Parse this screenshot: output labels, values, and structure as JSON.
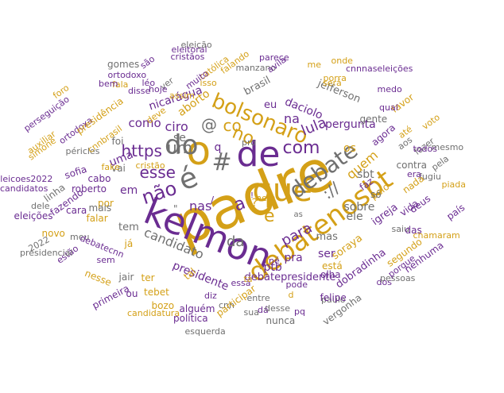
{
  "palette": {
    "purple": "#6a2c91",
    "gold": "#d4a017",
    "gray": "#707070",
    "tan": "#c8963e"
  },
  "words": [
    {
      "t": "padre",
      "c": "gold"
    },
    {
      "t": "kelmon",
      "c": "purple"
    },
    {
      "t": "o",
      "c": "gold"
    },
    {
      "t": "de",
      "c": "purple"
    },
    {
      "t": "é",
      "c": "gray"
    },
    {
      "t": "do",
      "c": "gray"
    },
    {
      "t": "que",
      "c": "gold"
    },
    {
      "t": "debatenosbt",
      "c": "gold"
    },
    {
      "t": "debate",
      "c": "gray"
    },
    {
      "t": "bolsonaro",
      "c": "gold"
    },
    {
      "t": "#",
      "c": "gray"
    },
    {
      "t": "não",
      "c": "purple"
    },
    {
      "t": "a",
      "c": "purple"
    },
    {
      "t": "com",
      "c": "purple"
    },
    {
      "t": "no",
      "c": "gold"
    },
    {
      "t": "esse",
      "c": "purple"
    },
    {
      "t": "https",
      "c": "purple"
    },
    {
      "t": "um",
      "c": "gray"
    },
    {
      "t": "e",
      "c": "gold"
    },
    {
      "t": "@",
      "c": "gray"
    },
    {
      "t": "co",
      "c": "gold"
    },
    {
      "t": "://",
      "c": "gray"
    },
    {
      "t": "da",
      "c": "gray"
    },
    {
      "t": "para",
      "c": "purple"
    },
    {
      "t": "lula",
      "c": "purple"
    },
    {
      "t": "candidato",
      "c": "gray"
    },
    {
      "t": "quem",
      "c": "gold"
    },
    {
      "t": "na",
      "c": "purple"
    },
    {
      "t": "ciro",
      "c": "purple"
    },
    {
      "t": "como",
      "c": "purple"
    },
    {
      "t": "em",
      "c": "purple"
    },
    {
      "t": "se",
      "c": "gray"
    },
    {
      "t": "uma",
      "c": "purple"
    },
    {
      "t": "aborto",
      "c": "gold"
    },
    {
      "t": "daciolo",
      "c": "purple"
    },
    {
      "t": "pergunta",
      "c": "purple"
    },
    {
      "t": "sobre",
      "c": "gray"
    },
    {
      "t": "ptb",
      "c": "purple"
    },
    {
      "t": "pra",
      "c": "purple"
    },
    {
      "t": "ser",
      "c": "purple"
    },
    {
      "t": "presidente",
      "c": "purple"
    },
    {
      "t": "debatepresidente",
      "c": "purple"
    },
    {
      "t": "os",
      "c": "gold"
    },
    {
      "t": "sbt",
      "c": "gray"
    },
    {
      "t": "ele",
      "c": "gray"
    },
    {
      "t": "mas",
      "c": "gray"
    },
    {
      "t": "igreja",
      "c": "purple"
    },
    {
      "t": "tem",
      "c": "gray"
    },
    {
      "t": "nicarágua",
      "c": "purple"
    },
    {
      "t": "brasil",
      "c": "gray"
    },
    {
      "t": "eu",
      "c": "purple"
    },
    {
      "t": "está",
      "c": "gold"
    },
    {
      "t": "soraya",
      "c": "gold"
    },
    {
      "t": "dobradinha",
      "c": "purple"
    },
    {
      "t": "jefferson",
      "c": "gray"
    },
    {
      "t": "gente",
      "c": "gray"
    },
    {
      "t": "agora",
      "c": "purple"
    },
    {
      "t": "vida",
      "c": "purple"
    },
    {
      "t": "deus",
      "c": "purple"
    },
    {
      "t": "pelo",
      "c": "gold"
    },
    {
      "t": "nada",
      "c": "gold"
    },
    {
      "t": "falar",
      "c": "gold"
    },
    {
      "t": "por",
      "c": "gold"
    },
    {
      "t": "vai",
      "c": "gray"
    },
    {
      "t": "foi",
      "c": "gray"
    },
    {
      "t": "cabo",
      "c": "purple"
    },
    {
      "t": "roberto",
      "c": "purple"
    },
    {
      "t": "sofia",
      "c": "purple"
    },
    {
      "t": "fazendo",
      "c": "purple"
    },
    {
      "t": "cara",
      "c": "purple"
    },
    {
      "t": "mais",
      "c": "gray"
    },
    {
      "t": "linha",
      "c": "gray"
    },
    {
      "t": "eleições",
      "c": "purple"
    },
    {
      "t": "dele",
      "c": "gray"
    },
    {
      "t": "novo",
      "c": "gold"
    },
    {
      "t": "meu",
      "c": "gray"
    },
    {
      "t": "2022",
      "c": "gray"
    },
    {
      "t": "estão",
      "c": "purple"
    },
    {
      "t": "presidencial",
      "c": "gray"
    },
    {
      "t": "sem",
      "c": "purple"
    },
    {
      "t": "debatecnn",
      "c": "purple"
    },
    {
      "t": "já",
      "c": "gold"
    },
    {
      "t": "jair",
      "c": "gray"
    },
    {
      "t": "ou",
      "c": "purple"
    },
    {
      "t": "primeira",
      "c": "purple"
    },
    {
      "t": "ter",
      "c": "gold"
    },
    {
      "t": "tebet",
      "c": "gold"
    },
    {
      "t": "bozo",
      "c": "gold"
    },
    {
      "t": "nesse",
      "c": "gold"
    },
    {
      "t": "candidatura",
      "c": "gold"
    },
    {
      "t": "alguém",
      "c": "purple"
    },
    {
      "t": "política",
      "c": "purple"
    },
    {
      "t": "esquerda",
      "c": "gray"
    },
    {
      "t": "tal",
      "c": "gold"
    },
    {
      "t": "cnn",
      "c": "gray"
    },
    {
      "t": "diz",
      "c": "purple"
    },
    {
      "t": "essa",
      "c": "purple"
    },
    {
      "t": "participar",
      "c": "gold"
    },
    {
      "t": "sua",
      "c": "gray"
    },
    {
      "t": "dá",
      "c": "purple"
    },
    {
      "t": "entre",
      "c": "gray"
    },
    {
      "t": "desse",
      "c": "gray"
    },
    {
      "t": "pode",
      "c": "purple"
    },
    {
      "t": "nunca",
      "c": "gray"
    },
    {
      "t": "pq",
      "c": "purple"
    },
    {
      "t": "paulo",
      "c": "gray"
    },
    {
      "t": "felipe",
      "c": "purple"
    },
    {
      "t": "vergonha",
      "c": "gray"
    },
    {
      "t": "olha",
      "c": "purple"
    },
    {
      "t": "dos",
      "c": "purple"
    },
    {
      "t": "pessoas",
      "c": "gray"
    },
    {
      "t": "porque",
      "c": "purple"
    },
    {
      "t": "nenhuma",
      "c": "purple"
    },
    {
      "t": "segundo",
      "c": "gold"
    },
    {
      "t": "chamaram",
      "c": "gold"
    },
    {
      "t": "saiu",
      "c": "gray"
    },
    {
      "t": "das",
      "c": "purple"
    },
    {
      "t": "país",
      "c": "purple"
    },
    {
      "t": "piada",
      "c": "gold"
    },
    {
      "t": "fugiu",
      "c": "gray"
    },
    {
      "t": "pela",
      "c": "gray"
    },
    {
      "t": "era",
      "c": "purple"
    },
    {
      "t": "contra",
      "c": "gray"
    },
    {
      "t": "fazer",
      "c": "gray"
    },
    {
      "t": "todos",
      "c": "purple"
    },
    {
      "t": "mesmo",
      "c": "gray"
    },
    {
      "t": "aos",
      "c": "gray"
    },
    {
      "t": "até",
      "c": "gold"
    },
    {
      "t": "voto",
      "c": "gold"
    },
    {
      "t": "favor",
      "c": "gold"
    },
    {
      "t": "qual",
      "c": "purple"
    },
    {
      "t": "medo",
      "c": "purple"
    },
    {
      "t": "cnnnaseleições",
      "c": "purple"
    },
    {
      "t": "será",
      "c": "gold"
    },
    {
      "t": "porra",
      "c": "gold"
    },
    {
      "t": "onde",
      "c": "gold"
    },
    {
      "t": "me",
      "c": "gold"
    },
    {
      "t": "parece",
      "c": "purple"
    },
    {
      "t": "manzano",
      "c": "gray"
    },
    {
      "t": "avila",
      "c": "purple"
    },
    {
      "t": "falando",
      "c": "gold"
    },
    {
      "t": "católica",
      "c": "gold"
    },
    {
      "t": "eleitoral",
      "c": "purple"
    },
    {
      "t": "eleição",
      "c": "gray"
    },
    {
      "t": "cristãos",
      "c": "purple"
    },
    {
      "t": "ver",
      "c": "gray"
    },
    {
      "t": "léo",
      "c": "purple"
    },
    {
      "t": "assim",
      "c": "gold"
    },
    {
      "t": "muito",
      "c": "purple"
    },
    {
      "t": "isso",
      "c": "gold"
    },
    {
      "t": "hoje",
      "c": "purple"
    },
    {
      "t": "são",
      "c": "purple"
    },
    {
      "t": "gomes",
      "c": "gray"
    },
    {
      "t": "ortodoxo",
      "c": "purple"
    },
    {
      "t": "disse",
      "c": "purple"
    },
    {
      "t": "fala",
      "c": "gold"
    },
    {
      "t": "bem",
      "c": "purple"
    },
    {
      "t": "deve",
      "c": "gold"
    },
    {
      "t": "foro",
      "c": "gold"
    },
    {
      "t": "perseguição",
      "c": "purple"
    },
    {
      "t": "ortodoxa",
      "c": "purple"
    },
    {
      "t": "presidência",
      "c": "gold"
    },
    {
      "t": "auxiliar",
      "c": "gold"
    },
    {
      "t": "simone",
      "c": "gold"
    },
    {
      "t": "péricles",
      "c": "gray"
    },
    {
      "t": "cnnbrasil",
      "c": "gold"
    },
    {
      "t": "eleicoes2022",
      "c": "purple"
    },
    {
      "t": "candidatos",
      "c": "purple"
    },
    {
      "t": "fake",
      "c": "gold"
    },
    {
      "t": "cristão",
      "c": "gold"
    },
    {
      "t": "pro",
      "c": "gray"
    },
    {
      "t": "só",
      "c": "gray"
    },
    {
      "t": "faz",
      "c": "purple"
    },
    {
      "t": "nem",
      "c": "gold"
    },
    {
      "t": "tá",
      "c": "gold"
    },
    {
      "t": "d",
      "c": "gold"
    },
    {
      "t": "né",
      "c": "purple"
    },
    {
      "t": "as",
      "c": "gray"
    },
    {
      "t": "nas",
      "c": "purple"
    },
    {
      "t": "q",
      "c": "purple"
    },
    {
      "t": "?",
      "c": "gold"
    },
    {
      "t": "\"",
      "c": "gray"
    },
    {
      "t": "/",
      "c": "purple"
    },
    {
      "t": "!",
      "c": "gray"
    },
    {
      "t": "!",
      "c": "purple"
    }
  ]
}
